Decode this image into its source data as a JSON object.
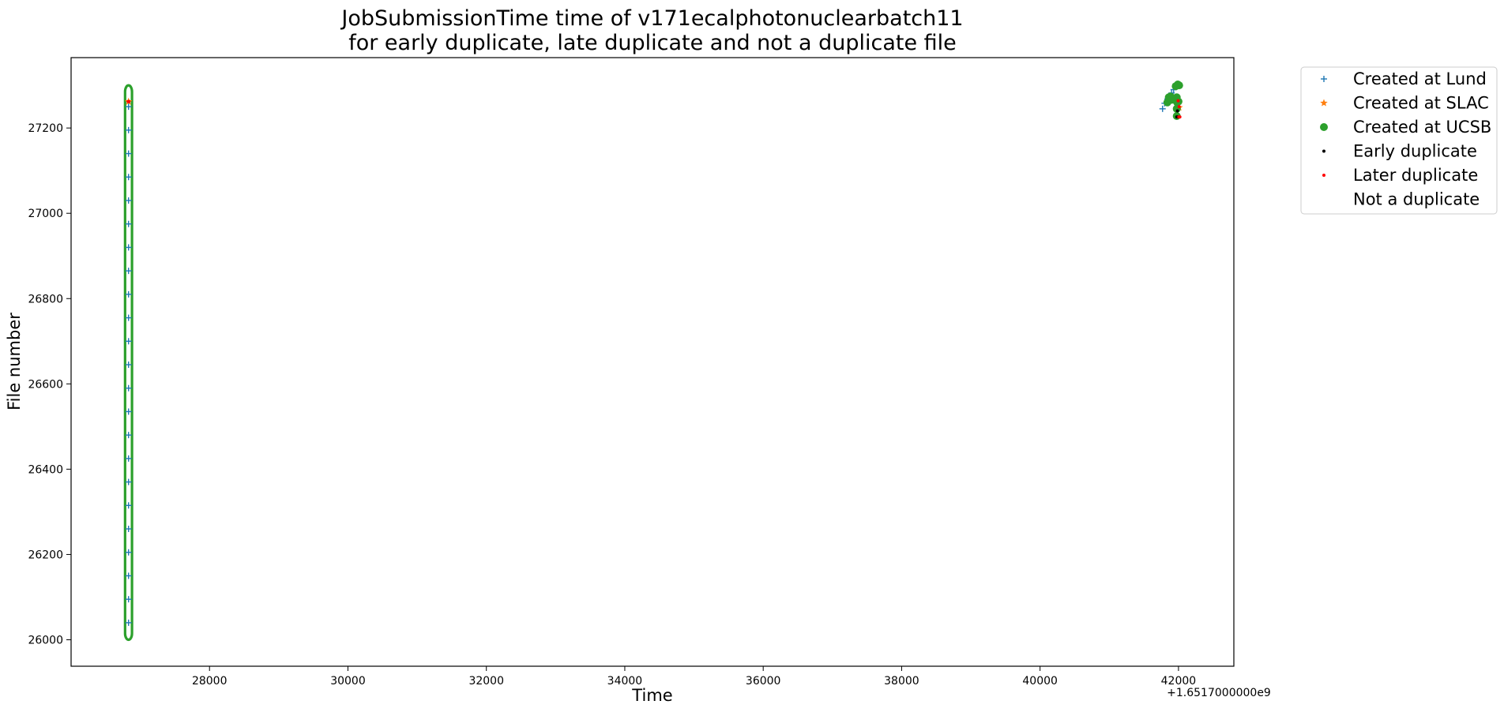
{
  "chart_data": {
    "type": "scatter",
    "title_line1": "JobSubmissionTime time of v171ecalphotonuclearbatch11",
    "title_line2": "for early duplicate, late duplicate and not a duplicate file",
    "xlabel": "Time",
    "ylabel": "File number",
    "x_offset_label": "+1.6517000000e9",
    "xlim": [
      26000,
      42800
    ],
    "ylim": [
      25938,
      27365
    ],
    "x_ticks": [
      28000,
      30000,
      32000,
      34000,
      36000,
      38000,
      40000,
      42000
    ],
    "x_tick_labels": [
      "28000",
      "30000",
      "32000",
      "34000",
      "36000",
      "38000",
      "40000",
      "42000"
    ],
    "y_ticks": [
      26000,
      26200,
      26400,
      26600,
      26800,
      27000,
      27200
    ],
    "y_tick_labels": [
      "26000",
      "26200",
      "26400",
      "26600",
      "26800",
      "27000",
      "27200"
    ],
    "legend_location": "outside upper right",
    "series": [
      {
        "name": "Created at Lund",
        "color": "#1f77b4",
        "marker": "plus",
        "points": [
          [
            41770,
            27245
          ],
          [
            41800,
            27258
          ],
          [
            41840,
            27268
          ],
          [
            41870,
            27275
          ],
          [
            41900,
            27282
          ],
          [
            41930,
            27290
          ],
          [
            41960,
            27296
          ]
        ]
      },
      {
        "name": "Created at SLAC",
        "color": "#ff7f0e",
        "marker": "star",
        "points": [
          [
            26830,
            27262
          ],
          [
            41990,
            27262
          ],
          [
            42010,
            27248
          ]
        ]
      },
      {
        "name": "Created at UCSB",
        "color": "#2ca02c",
        "marker": "circle",
        "loop_x": [
          26780,
          26880
        ],
        "loop_y": [
          26000,
          27300
        ],
        "points": [
          [
            41840,
            27260
          ],
          [
            41860,
            27272
          ],
          [
            41885,
            27274
          ],
          [
            41900,
            27266
          ],
          [
            41960,
            27298
          ],
          [
            41990,
            27302
          ],
          [
            42010,
            27300
          ],
          [
            41975,
            27272
          ],
          [
            41980,
            27260
          ],
          [
            41975,
            27245
          ],
          [
            41975,
            27228
          ],
          [
            42000,
            27262
          ]
        ]
      },
      {
        "name": "Early duplicate",
        "color": "#000000",
        "marker": "point",
        "points": [
          [
            41975,
            27226
          ],
          [
            41990,
            27226
          ],
          [
            41985,
            27240
          ]
        ]
      },
      {
        "name": "Later duplicate",
        "color": "#ff0000",
        "marker": "point",
        "points": [
          [
            26825,
            27262
          ],
          [
            26835,
            27262
          ],
          [
            41995,
            27264
          ],
          [
            42010,
            27250
          ],
          [
            42005,
            27226
          ],
          [
            42020,
            27226
          ]
        ]
      },
      {
        "name": "Not a duplicate",
        "color": "#ffffff",
        "marker": "point",
        "points": []
      }
    ]
  }
}
